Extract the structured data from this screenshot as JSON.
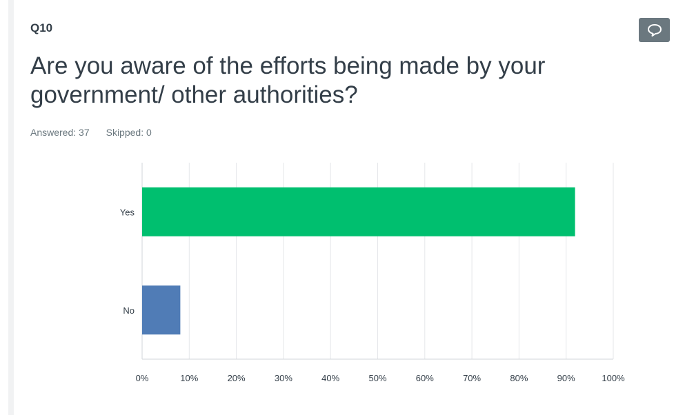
{
  "question": {
    "number": "Q10",
    "title": "Are you aware of the efforts being made by your government/ other authorities?",
    "answered_label": "Answered: 37",
    "skipped_label": "Skipped: 0"
  },
  "colors": {
    "yes_bar": "#00bf6f",
    "no_bar": "#507cb6",
    "grid": "#e5e7ea",
    "axis": "#d0d4d8",
    "comment_button": "#6b787f"
  },
  "comment_button": {
    "icon": "speech-bubble-icon"
  },
  "chart_data": {
    "type": "bar",
    "orientation": "horizontal",
    "categories": [
      "Yes",
      "No"
    ],
    "values": [
      91.89,
      8.11
    ],
    "colors": [
      "#00bf6f",
      "#507cb6"
    ],
    "x_ticks": [
      "0%",
      "10%",
      "20%",
      "30%",
      "40%",
      "50%",
      "60%",
      "70%",
      "80%",
      "90%",
      "100%"
    ],
    "xlim": [
      0,
      100
    ],
    "grid": true,
    "title": "",
    "xlabel": "",
    "ylabel": ""
  }
}
